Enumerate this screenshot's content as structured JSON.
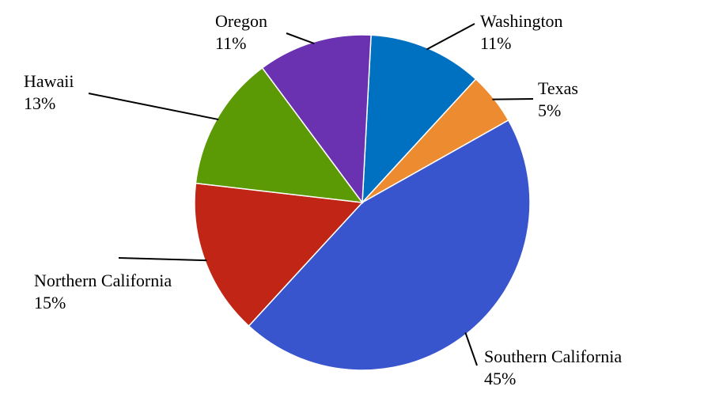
{
  "chart_data": {
    "type": "pie",
    "title": "",
    "start_angle_deg": 3,
    "direction": "clockwise",
    "slices": [
      {
        "label": "Washington",
        "value": 11,
        "value_label": "11%",
        "color": "#0070C0"
      },
      {
        "label": "Texas",
        "value": 5,
        "value_label": "5%",
        "color": "#ED8B31"
      },
      {
        "label": "Southern California",
        "value": 45,
        "value_label": "45%",
        "color": "#3955CD"
      },
      {
        "label": "Northern California",
        "value": 15,
        "value_label": "15%",
        "color": "#C02515"
      },
      {
        "label": "Hawaii",
        "value": 13,
        "value_label": "13%",
        "color": "#5C9A05"
      },
      {
        "label": "Oregon",
        "value": 11,
        "value_label": "11%",
        "color": "#6A31B0"
      }
    ],
    "legend": "none",
    "data_labels": "outside with leader lines"
  }
}
